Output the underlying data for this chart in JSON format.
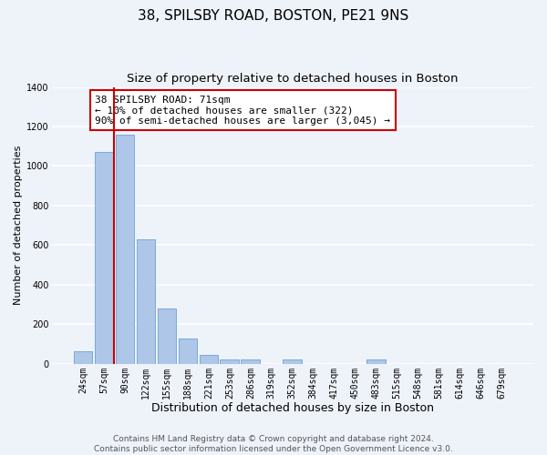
{
  "title": "38, SPILSBY ROAD, BOSTON, PE21 9NS",
  "subtitle": "Size of property relative to detached houses in Boston",
  "xlabel": "Distribution of detached houses by size in Boston",
  "ylabel": "Number of detached properties",
  "bar_labels": [
    "24sqm",
    "57sqm",
    "90sqm",
    "122sqm",
    "155sqm",
    "188sqm",
    "221sqm",
    "253sqm",
    "286sqm",
    "319sqm",
    "352sqm",
    "384sqm",
    "417sqm",
    "450sqm",
    "483sqm",
    "515sqm",
    "548sqm",
    "581sqm",
    "614sqm",
    "646sqm",
    "679sqm"
  ],
  "bar_values": [
    65,
    1070,
    1160,
    630,
    280,
    130,
    47,
    20,
    20,
    0,
    20,
    0,
    0,
    0,
    20,
    0,
    0,
    0,
    0,
    0,
    0
  ],
  "bar_color": "#aec6e8",
  "bar_edge_color": "#6aa3d5",
  "vline_color": "#cc0000",
  "annotation_box_text": "38 SPILSBY ROAD: 71sqm\n← 10% of detached houses are smaller (322)\n90% of semi-detached houses are larger (3,045) →",
  "box_edge_color": "#cc0000",
  "ylim": [
    0,
    1400
  ],
  "yticks": [
    0,
    200,
    400,
    600,
    800,
    1000,
    1200,
    1400
  ],
  "background_color": "#eef2f9",
  "grid_color": "#ffffff",
  "footer": "Contains HM Land Registry data © Crown copyright and database right 2024.\nContains public sector information licensed under the Open Government Licence v3.0.",
  "title_fontsize": 11,
  "subtitle_fontsize": 9.5,
  "xlabel_fontsize": 9,
  "ylabel_fontsize": 8,
  "tick_fontsize": 7,
  "annotation_fontsize": 8,
  "footer_fontsize": 6.5
}
